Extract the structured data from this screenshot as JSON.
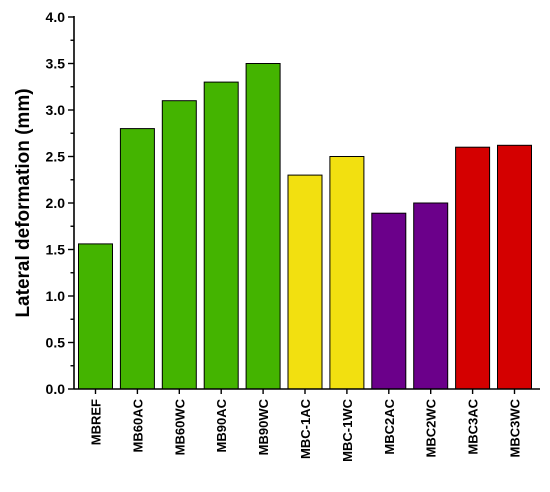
{
  "chart_data": {
    "type": "bar",
    "title": "",
    "xlabel": "",
    "ylabel": "Lateral deformation (mm)",
    "ylim": [
      0,
      4
    ],
    "yticks": [
      "0.0",
      "0.5",
      "1.0",
      "1.5",
      "2.0",
      "2.5",
      "3.0",
      "3.5",
      "4.0"
    ],
    "grid": false,
    "legend": "none",
    "categories": [
      "MBREF",
      "MB60AC",
      "MB60WC",
      "MB90AC",
      "MB90WC",
      "MBC-1AC",
      "MBC-1WC",
      "MBC2AC",
      "MBC2WC",
      "MBC3AC",
      "MBC3WC"
    ],
    "values": [
      1.56,
      2.8,
      3.1,
      3.3,
      3.5,
      2.3,
      2.5,
      1.89,
      2.0,
      2.6,
      2.62
    ],
    "colors": [
      "#44b400",
      "#44b400",
      "#44b400",
      "#44b400",
      "#44b400",
      "#f2e010",
      "#f2e010",
      "#6b008a",
      "#6b008a",
      "#d40000",
      "#d40000"
    ]
  }
}
